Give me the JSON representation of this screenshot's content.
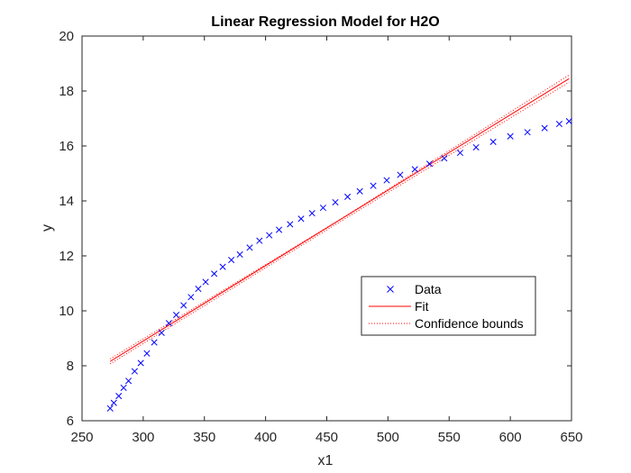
{
  "chart_data": {
    "type": "scatter",
    "title": "Linear Regression Model for H2O",
    "xlabel": "x1",
    "ylabel": "y",
    "xlim": [
      250,
      650
    ],
    "ylim": [
      6,
      20
    ],
    "xticks": [
      250,
      300,
      350,
      400,
      450,
      500,
      550,
      600,
      650
    ],
    "yticks": [
      6,
      8,
      10,
      12,
      14,
      16,
      18,
      20
    ],
    "grid": false,
    "legend_position": "center-right",
    "colors": {
      "data": "#0000ff",
      "fit": "#ff0000",
      "bounds": "#ff0000"
    },
    "series": [
      {
        "name": "Data",
        "style": "x-marker",
        "points": [
          [
            273,
            6.45
          ],
          [
            276,
            6.65
          ],
          [
            280,
            6.9
          ],
          [
            284,
            7.2
          ],
          [
            288,
            7.45
          ],
          [
            293,
            7.8
          ],
          [
            298,
            8.1
          ],
          [
            303,
            8.45
          ],
          [
            309,
            8.85
          ],
          [
            315,
            9.2
          ],
          [
            321,
            9.55
          ],
          [
            327,
            9.85
          ],
          [
            333,
            10.2
          ],
          [
            339,
            10.5
          ],
          [
            345,
            10.8
          ],
          [
            351,
            11.05
          ],
          [
            358,
            11.35
          ],
          [
            365,
            11.6
          ],
          [
            372,
            11.85
          ],
          [
            379,
            12.05
          ],
          [
            387,
            12.3
          ],
          [
            395,
            12.55
          ],
          [
            403,
            12.75
          ],
          [
            411,
            12.95
          ],
          [
            420,
            13.15
          ],
          [
            429,
            13.35
          ],
          [
            438,
            13.55
          ],
          [
            447,
            13.75
          ],
          [
            457,
            13.95
          ],
          [
            467,
            14.15
          ],
          [
            477,
            14.35
          ],
          [
            488,
            14.55
          ],
          [
            499,
            14.75
          ],
          [
            510,
            14.95
          ],
          [
            522,
            15.15
          ],
          [
            534,
            15.35
          ],
          [
            546,
            15.55
          ],
          [
            559,
            15.75
          ],
          [
            572,
            15.95
          ],
          [
            586,
            16.15
          ],
          [
            600,
            16.35
          ],
          [
            614,
            16.5
          ],
          [
            628,
            16.65
          ],
          [
            640,
            16.8
          ],
          [
            648,
            16.9
          ]
        ]
      },
      {
        "name": "Fit",
        "style": "solid-line",
        "points": [
          [
            273,
            8.16
          ],
          [
            648,
            18.45
          ]
        ]
      },
      {
        "name": "Confidence bounds",
        "style": "dotted-line",
        "upper": [
          [
            273,
            8.25
          ],
          [
            460,
            13.3
          ],
          [
            648,
            18.58
          ]
        ],
        "lower": [
          [
            273,
            8.07
          ],
          [
            460,
            13.22
          ],
          [
            648,
            18.32
          ]
        ]
      }
    ]
  }
}
